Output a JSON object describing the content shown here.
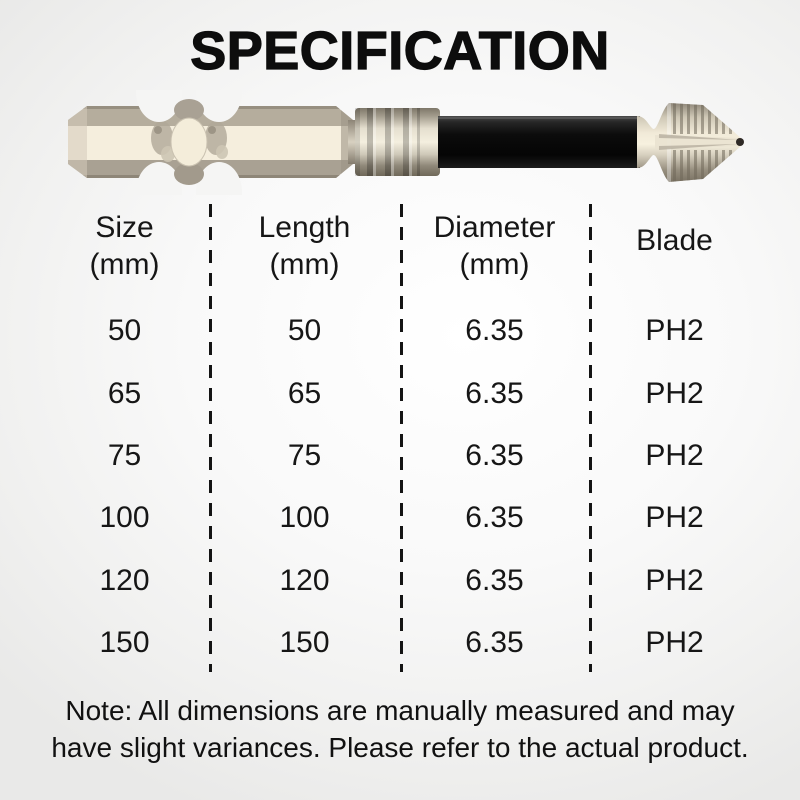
{
  "title": "SPECIFICATION",
  "product_image": {
    "name": "magnetic-ph2-screwdriver-bit",
    "parts": [
      "hex-shank",
      "torsion-groove",
      "magnetic-collar",
      "black-shaft",
      "ph2-cross-tip"
    ]
  },
  "table": {
    "columns": [
      {
        "label": "Size",
        "unit": "(mm)"
      },
      {
        "label": "Length",
        "unit": "(mm)"
      },
      {
        "label": "Diameter",
        "unit": "(mm)"
      },
      {
        "label": "Blade",
        "unit": ""
      }
    ],
    "rows": [
      [
        "50",
        "50",
        "6.35",
        "PH2"
      ],
      [
        "65",
        "65",
        "6.35",
        "PH2"
      ],
      [
        "75",
        "75",
        "6.35",
        "PH2"
      ],
      [
        "100",
        "100",
        "6.35",
        "PH2"
      ],
      [
        "120",
        "120",
        "6.35",
        "PH2"
      ],
      [
        "150",
        "150",
        "6.35",
        "PH2"
      ]
    ]
  },
  "note": {
    "line1": "Note: All dimensions are manually measured and may",
    "line2": "have slight variances. Please refer to the actual product."
  },
  "colors": {
    "background": "#f3f3f2",
    "text": "#141414",
    "divider": "#141414",
    "bit_cream": "#f5eedd",
    "bit_tan": "#b5ad9d",
    "bit_dark_tan": "#8f8779",
    "bit_shaft_black": "#0c0c0c"
  }
}
